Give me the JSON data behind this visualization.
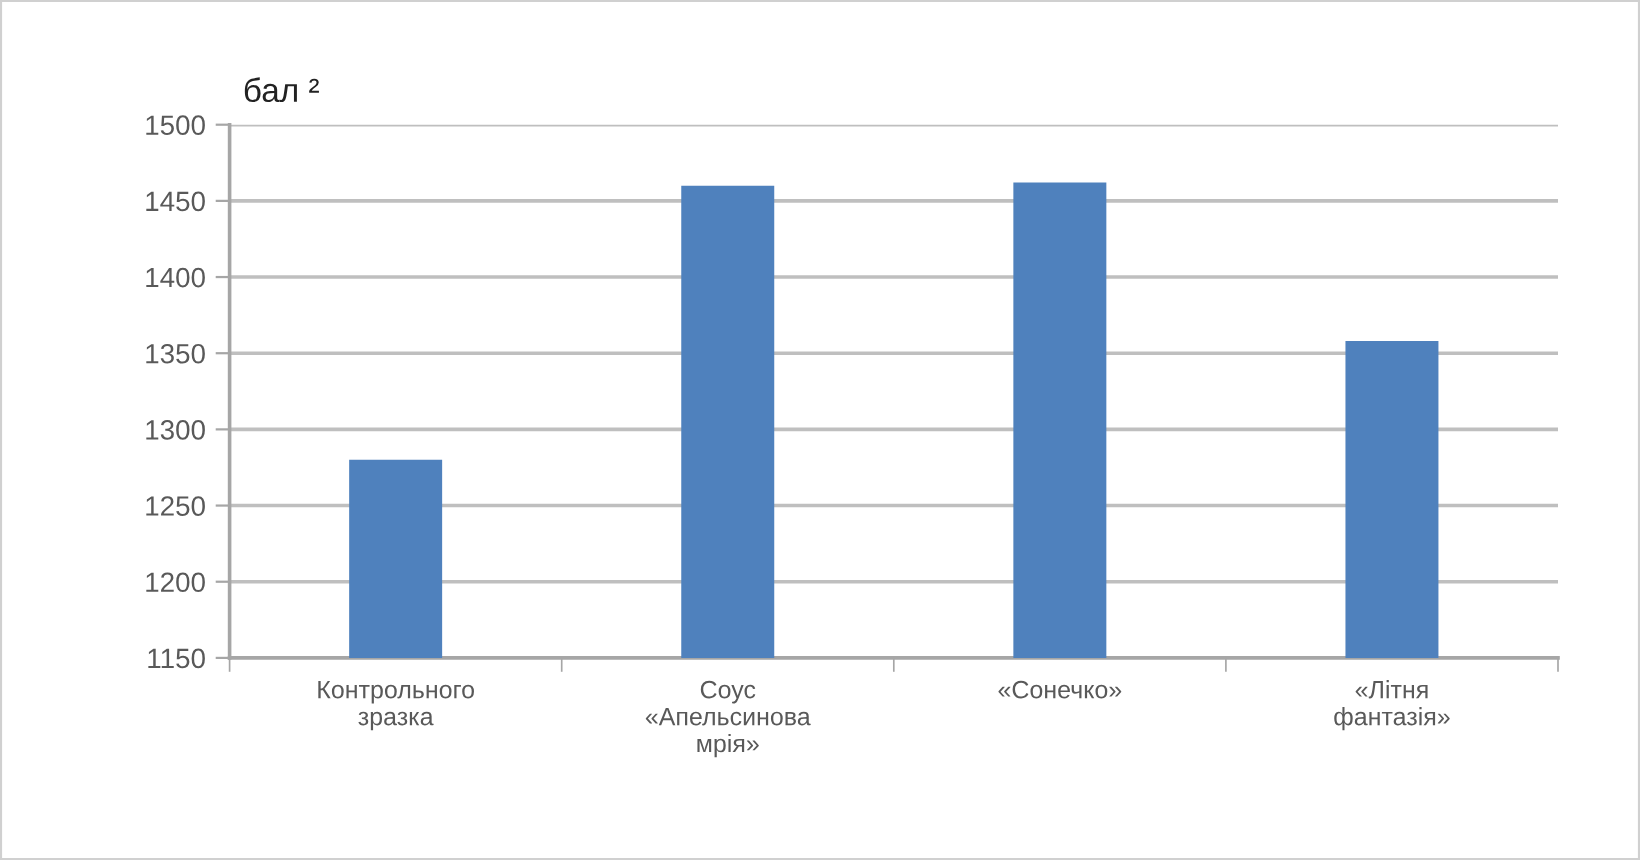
{
  "chart_data": {
    "type": "bar",
    "ylabel": "бал ²",
    "categories": [
      "Контрольного\nзразка",
      "Соус\n«Апельсинова\nмрія»",
      "«Сонечко»",
      "«Літня\nфантазія»"
    ],
    "values": [
      1280,
      1460,
      1462,
      1358
    ],
    "color": "#4f81bd",
    "ylim": [
      1150,
      1500
    ],
    "yticks": [
      1150,
      1200,
      1250,
      1300,
      1350,
      1400,
      1450,
      1500
    ],
    "grid": "y"
  }
}
